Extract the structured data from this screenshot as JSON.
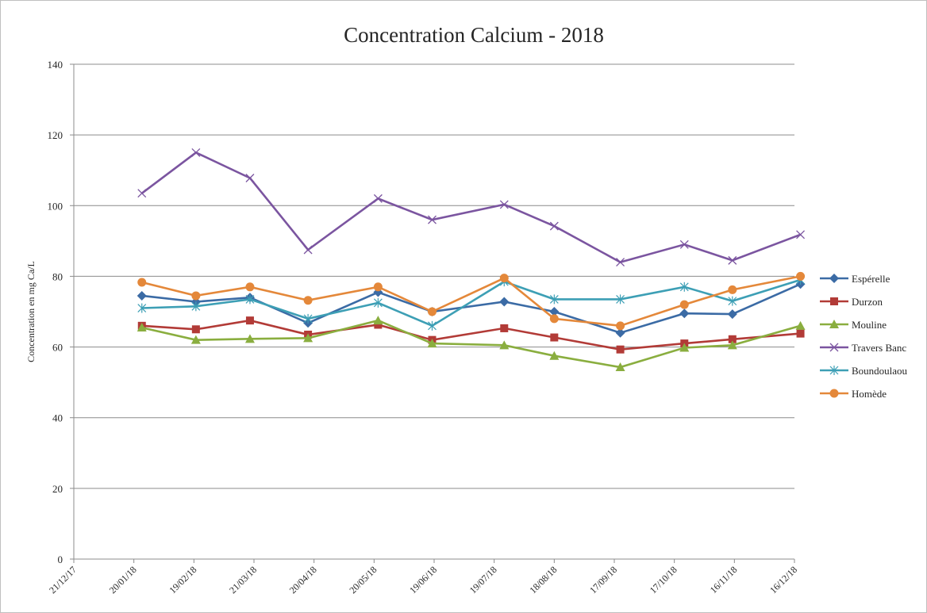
{
  "chart_data": {
    "type": "line",
    "title": "Concentration Calcium - 2018",
    "xlabel": "",
    "ylabel": "Concentration en mg Ca/L",
    "ylim": [
      0,
      140
    ],
    "yticks": [
      0,
      20,
      40,
      60,
      80,
      100,
      120,
      140
    ],
    "x_tick_labels": [
      "21/12/17",
      "20/01/18",
      "19/02/18",
      "21/03/18",
      "20/04/18",
      "20/05/18",
      "19/06/18",
      "19/07/18",
      "18/08/18",
      "17/09/18",
      "17/10/18",
      "16/11/18",
      "16/12/18"
    ],
    "x_dates": [
      "2018-01-24",
      "2018-02-20",
      "2018-03-19",
      "2018-04-17",
      "2018-05-22",
      "2018-06-18",
      "2018-07-24",
      "2018-08-18",
      "2018-09-20",
      "2018-10-22",
      "2018-11-15",
      "2018-12-19"
    ],
    "grid": true,
    "legend_position": "right",
    "series": [
      {
        "name": "Espérelle",
        "color": "#3b6ba5",
        "marker": "diamond",
        "values": [
          74.5,
          72.8,
          74.0,
          66.8,
          75.5,
          70.0,
          72.8,
          70.0,
          64.0,
          69.5,
          69.3,
          77.8
        ]
      },
      {
        "name": "Durzon",
        "color": "#b23b37",
        "marker": "square",
        "values": [
          66.0,
          65.0,
          67.5,
          63.5,
          66.3,
          62.0,
          65.3,
          62.7,
          59.3,
          61.0,
          62.2,
          63.8
        ]
      },
      {
        "name": "Mouline",
        "color": "#8aae3f",
        "marker": "triangle",
        "values": [
          65.5,
          62.0,
          62.3,
          62.5,
          67.5,
          61.0,
          60.5,
          57.5,
          54.3,
          59.8,
          60.5,
          66.0
        ]
      },
      {
        "name": "Travers Banc",
        "color": "#7b55a0",
        "marker": "x",
        "values": [
          103.5,
          115.0,
          107.8,
          87.5,
          102.0,
          96.0,
          100.3,
          94.2,
          84.0,
          89.0,
          84.5,
          91.8
        ]
      },
      {
        "name": "Boundoulaou",
        "color": "#3d9fb5",
        "marker": "asterisk",
        "values": [
          71.0,
          71.5,
          73.5,
          68.0,
          72.5,
          66.0,
          78.5,
          73.5,
          73.5,
          77.0,
          73.0,
          79.0
        ]
      },
      {
        "name": "Homède",
        "color": "#e4883a",
        "marker": "circle",
        "values": [
          78.3,
          74.5,
          77.0,
          73.2,
          77.0,
          70.0,
          79.5,
          68.0,
          66.0,
          72.0,
          76.2,
          80.0
        ]
      }
    ]
  }
}
